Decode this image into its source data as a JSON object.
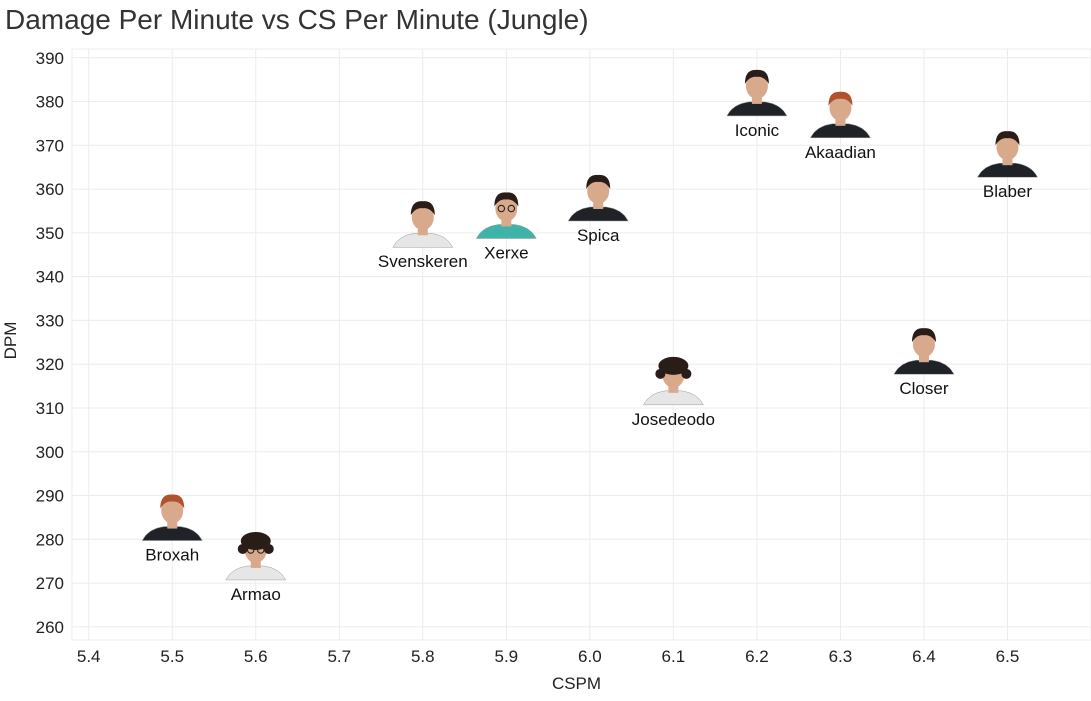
{
  "chart_data": {
    "type": "scatter",
    "title": "Damage Per Minute vs CS Per Minute (Jungle)",
    "xlabel": "CSPM",
    "ylabel": "DPM",
    "xlim": [
      5.38,
      6.6
    ],
    "ylim": [
      257,
      392
    ],
    "xticks": [
      5.4,
      5.5,
      5.6,
      5.7,
      5.8,
      5.9,
      6.0,
      6.1,
      6.2,
      6.3,
      6.4,
      6.5
    ],
    "xtick_labels": [
      "5.4",
      "5.5",
      "5.6",
      "5.7",
      "5.8",
      "5.9",
      "6.0",
      "6.1",
      "6.2",
      "6.3",
      "6.4",
      "6.5"
    ],
    "yticks": [
      260,
      270,
      280,
      290,
      300,
      310,
      320,
      330,
      340,
      350,
      360,
      370,
      380,
      390
    ],
    "ytick_labels": [
      "260",
      "270",
      "280",
      "290",
      "300",
      "310",
      "320",
      "330",
      "340",
      "350",
      "360",
      "370",
      "380",
      "390"
    ],
    "grid": true,
    "marker": "player-photo",
    "points": [
      {
        "label": "Iconic",
        "x": 6.2,
        "y": 379
      },
      {
        "label": "Akaadian",
        "x": 6.3,
        "y": 374
      },
      {
        "label": "Blaber",
        "x": 6.5,
        "y": 365
      },
      {
        "label": "Spica",
        "x": 6.01,
        "y": 355
      },
      {
        "label": "Xerxe",
        "x": 5.9,
        "y": 351
      },
      {
        "label": "Svenskeren",
        "x": 5.8,
        "y": 349
      },
      {
        "label": "Closer",
        "x": 6.4,
        "y": 320
      },
      {
        "label": "Josedeodo",
        "x": 6.1,
        "y": 313
      },
      {
        "label": "Broxah",
        "x": 5.5,
        "y": 282
      },
      {
        "label": "Armao",
        "x": 5.6,
        "y": 273
      }
    ]
  },
  "colors": {
    "jersey_dark": "#1f2328",
    "jersey_light": "#e6e6e6",
    "jersey_teal": "#3fb3a8",
    "skin": "#d9a98c",
    "hair_dark": "#2a1d17",
    "hair_red": "#b0532d"
  }
}
